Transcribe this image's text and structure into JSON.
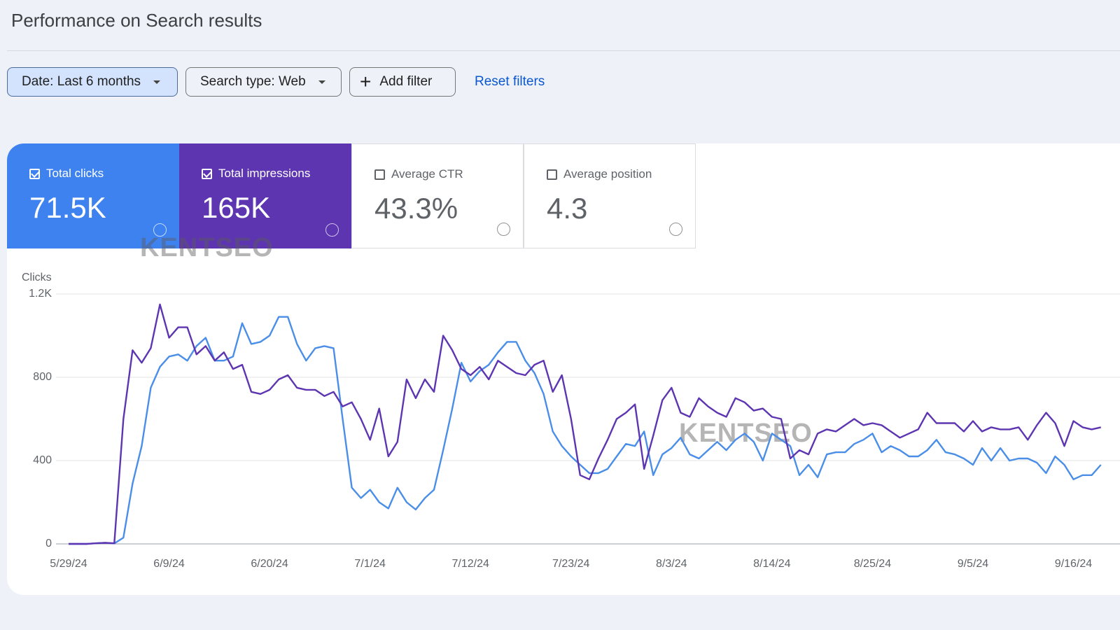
{
  "header": {
    "title": "Performance on Search results"
  },
  "filters": {
    "date": "Date: Last 6 months",
    "search_type": "Search type: Web",
    "add_filter": "Add filter",
    "reset": "Reset filters"
  },
  "metrics": [
    {
      "label": "Total clicks",
      "value": "71.5K",
      "checked": true,
      "color": "#3e82f0"
    },
    {
      "label": "Total impressions",
      "value": "165K",
      "checked": true,
      "color": "#5e35b1"
    },
    {
      "label": "Average CTR",
      "value": "43.3%",
      "checked": false,
      "color": "#ffffff"
    },
    {
      "label": "Average position",
      "value": "4.3",
      "checked": false,
      "color": "#ffffff"
    }
  ],
  "watermarks": [
    "KENTSEO",
    "KENTSEO"
  ],
  "chart_data": {
    "type": "line",
    "y_label": "Clicks",
    "categories": [
      "5/29/24",
      null,
      null,
      null,
      null,
      null,
      null,
      null,
      null,
      null,
      null,
      "6/9/24",
      null,
      null,
      null,
      null,
      null,
      null,
      null,
      null,
      null,
      null,
      "6/20/24",
      null,
      null,
      null,
      null,
      null,
      null,
      null,
      null,
      null,
      null,
      "7/1/24",
      null,
      null,
      null,
      null,
      null,
      null,
      null,
      null,
      null,
      null,
      "7/12/24",
      null,
      null,
      null,
      null,
      null,
      null,
      null,
      null,
      null,
      null,
      "7/23/24",
      null,
      null,
      null,
      null,
      null,
      null,
      null,
      null,
      null,
      null,
      "8/3/24",
      null,
      null,
      null,
      null,
      null,
      null,
      null,
      null,
      null,
      null,
      "8/14/24",
      null,
      null,
      null,
      null,
      null,
      null,
      null,
      null,
      null,
      null,
      "8/25/24",
      null,
      null,
      null,
      null,
      null,
      null,
      null,
      null,
      null,
      null,
      "9/5/24",
      null,
      null,
      null,
      null,
      null,
      null,
      null,
      null,
      null,
      null,
      "9/16/24",
      null,
      null,
      null
    ],
    "series": [
      {
        "color": "#4a8ee8",
        "values": [
          0,
          0,
          0,
          3,
          5,
          2,
          30,
          290,
          470,
          750,
          850,
          900,
          910,
          880,
          950,
          990,
          880,
          880,
          900,
          1060,
          960,
          970,
          1000,
          1090,
          1090,
          960,
          880,
          940,
          950,
          940,
          600,
          270,
          220,
          260,
          200,
          170,
          270,
          200,
          165,
          220,
          260,
          450,
          650,
          870,
          780,
          830,
          860,
          920,
          970,
          970,
          880,
          820,
          720,
          540,
          470,
          420,
          380,
          340,
          340,
          360,
          420,
          480,
          470,
          540,
          330,
          430,
          460,
          510,
          430,
          410,
          450,
          490,
          450,
          500,
          530,
          490,
          400,
          530,
          500,
          470,
          330,
          380,
          320,
          430,
          440,
          440,
          480,
          500,
          530,
          440,
          470,
          450,
          420,
          420,
          450,
          500,
          440,
          430,
          410,
          380,
          460,
          400,
          460,
          400,
          410,
          410,
          390,
          340,
          420,
          380,
          310,
          330,
          330,
          380
        ]
      },
      {
        "color": "#5e35b1",
        "values": [
          0,
          0,
          0,
          3,
          5,
          3,
          600,
          930,
          870,
          940,
          1150,
          990,
          1040,
          1040,
          910,
          950,
          880,
          920,
          840,
          860,
          730,
          720,
          740,
          790,
          810,
          750,
          740,
          740,
          710,
          730,
          660,
          680,
          600,
          500,
          650,
          420,
          490,
          790,
          700,
          790,
          730,
          1000,
          930,
          840,
          810,
          850,
          790,
          880,
          850,
          820,
          810,
          860,
          880,
          730,
          810,
          600,
          330,
          310,
          410,
          500,
          600,
          630,
          670,
          360,
          520,
          690,
          750,
          630,
          610,
          700,
          660,
          630,
          610,
          700,
          680,
          640,
          650,
          610,
          600,
          410,
          450,
          430,
          530,
          550,
          540,
          570,
          600,
          570,
          580,
          570,
          540,
          510,
          530,
          550,
          630,
          580,
          580,
          580,
          540,
          590,
          540,
          560,
          550,
          550,
          560,
          500,
          570,
          630,
          580,
          470,
          590,
          560,
          550,
          560
        ]
      }
    ],
    "ylim": [
      0,
      1200
    ],
    "yticks": [
      0,
      400,
      800,
      {
        "value": 1200,
        "label": "1.2K"
      }
    ],
    "grid": true
  }
}
